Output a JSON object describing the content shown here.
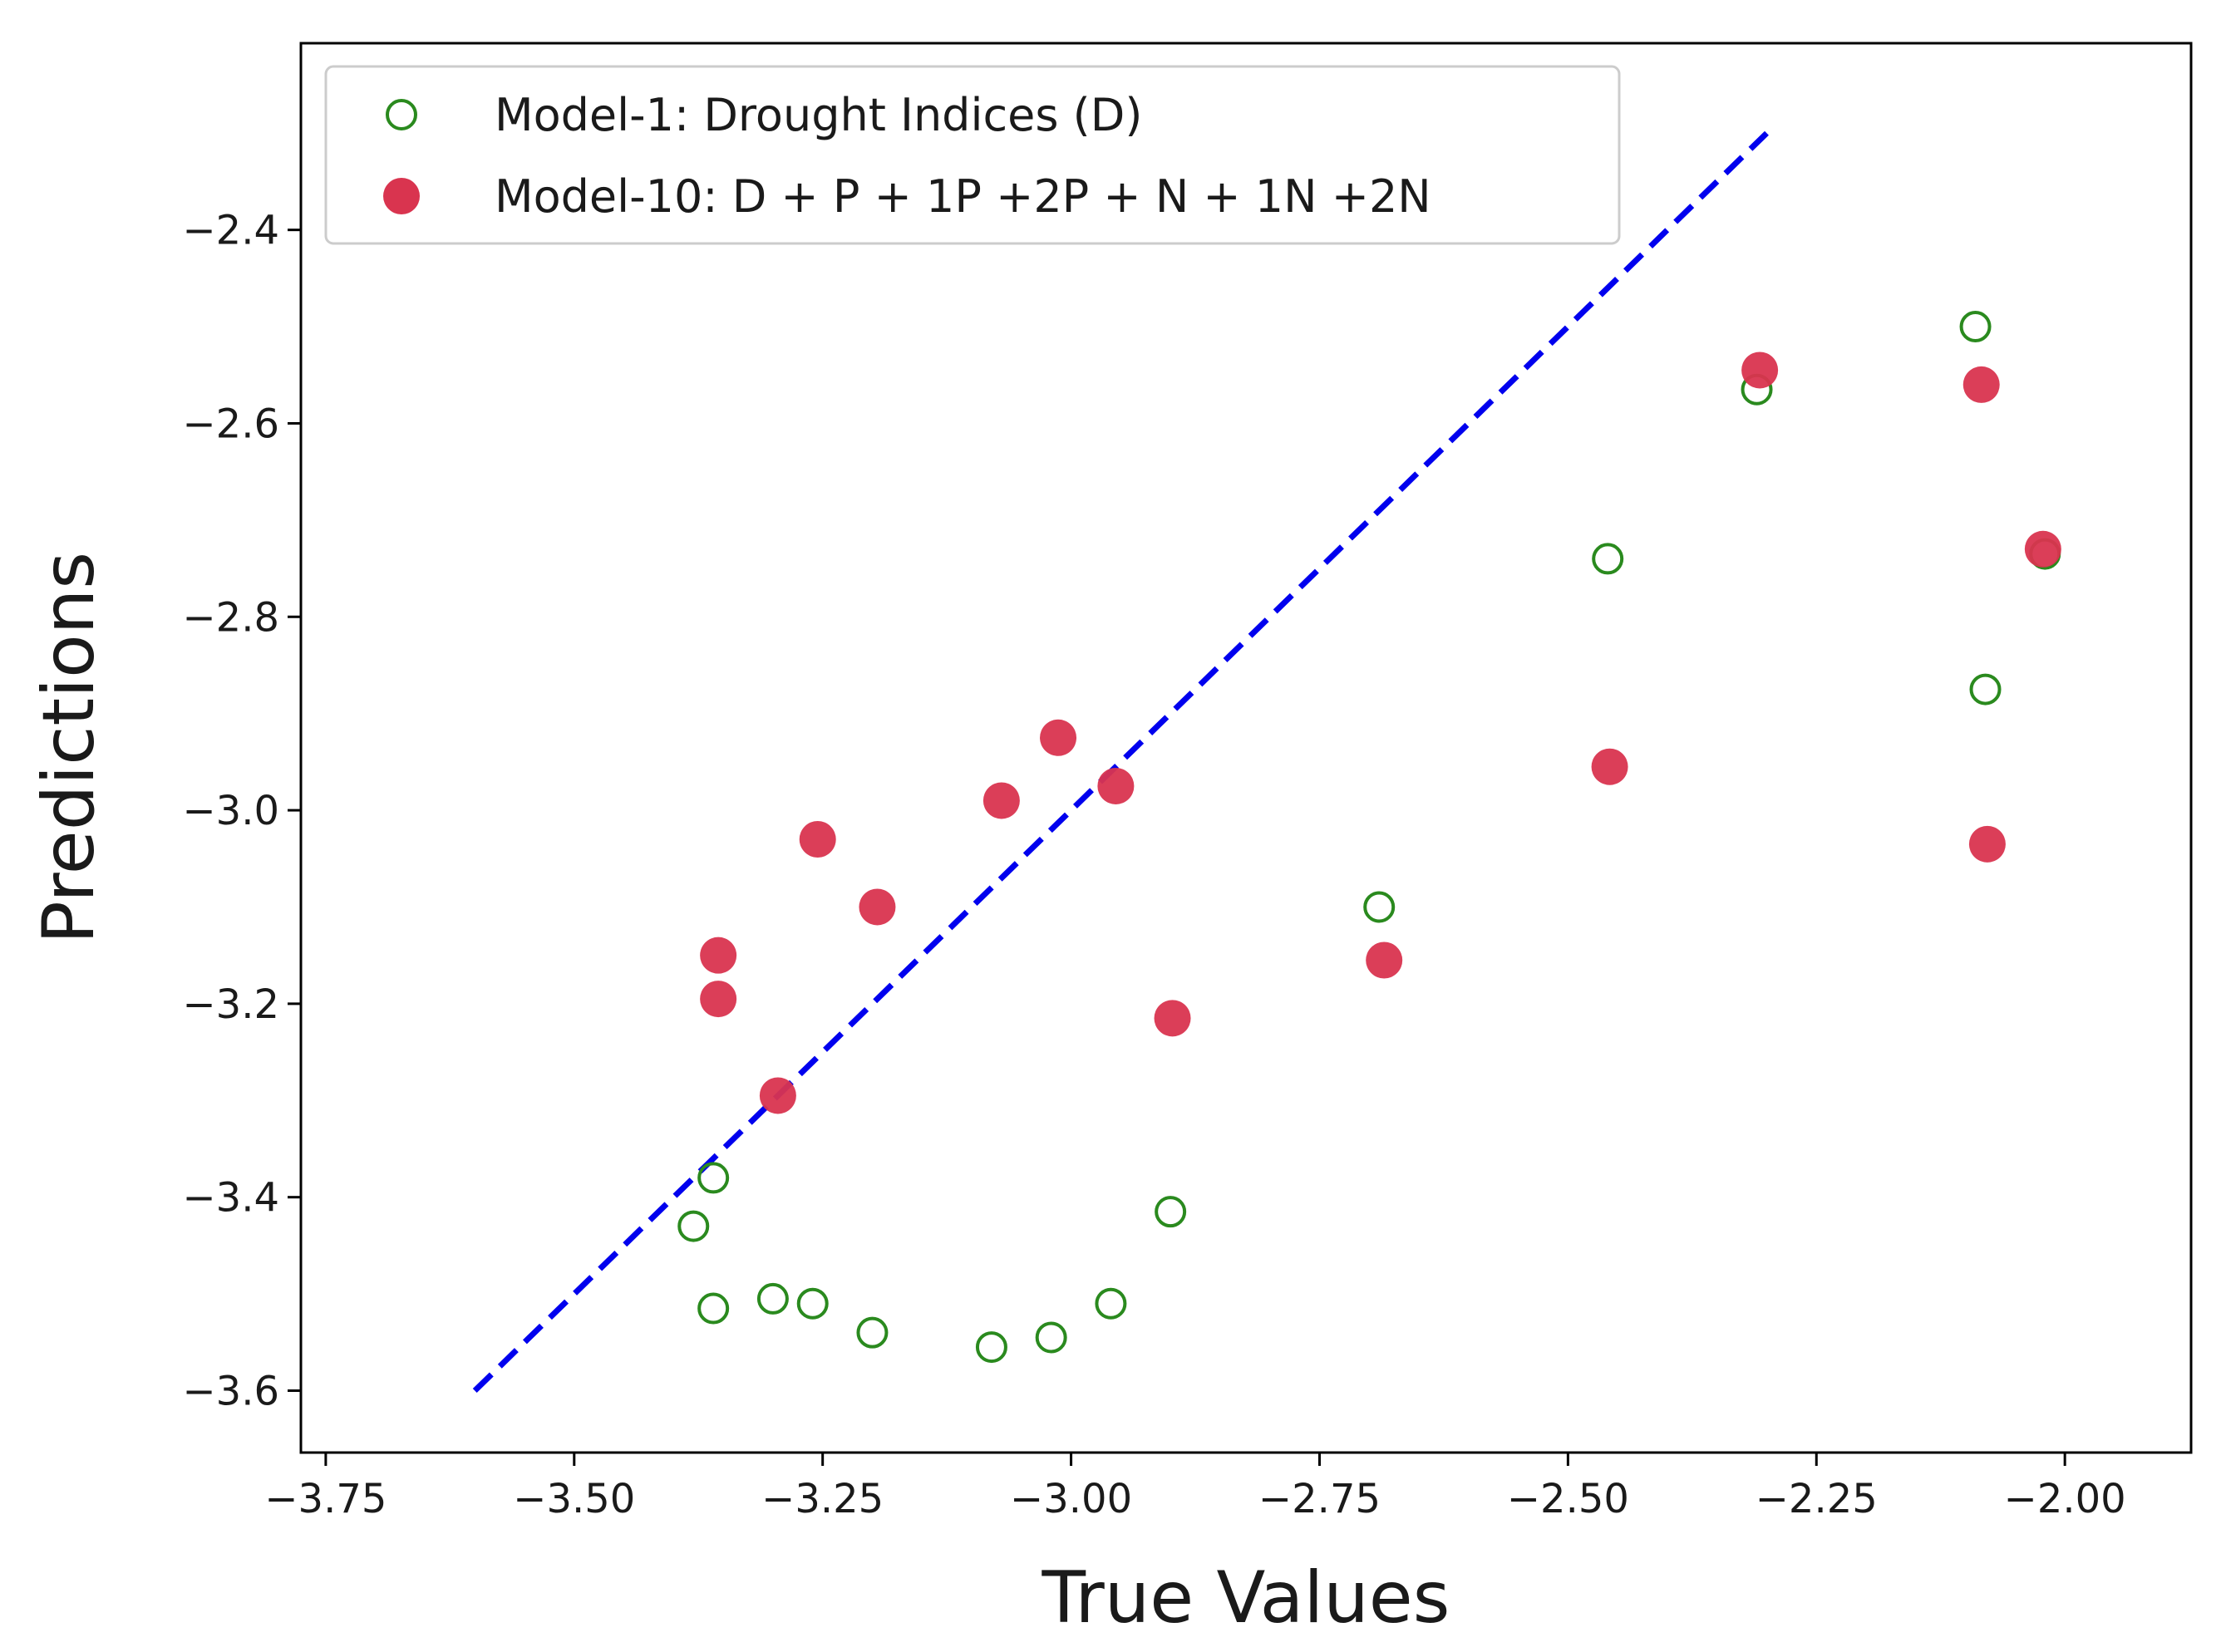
{
  "chart_data": {
    "type": "scatter",
    "title": "",
    "xlabel": "True Values",
    "ylabel": "Predictions",
    "xlim": [
      -3.775,
      -1.873
    ],
    "ylim": [
      -3.664,
      -2.207
    ],
    "xticks": [
      -3.75,
      -3.5,
      -3.25,
      -3.0,
      -2.75,
      -2.5,
      -2.25,
      -2.0
    ],
    "xtick_labels": [
      "−3.75",
      "−3.50",
      "−3.25",
      "−3.00",
      "−2.75",
      "−2.50",
      "−2.25",
      "−2.00"
    ],
    "yticks": [
      -3.6,
      -3.4,
      -3.2,
      -3.0,
      -2.8,
      -2.6,
      -2.4
    ],
    "ytick_labels": [
      "−3.6",
      "−3.4",
      "−3.2",
      "−3.0",
      "−2.8",
      "−2.6",
      "−2.4"
    ],
    "grid": false,
    "legend_position": "top-left",
    "reference_line": {
      "x": [
        -3.6,
        -2.3
      ],
      "y": [
        -3.6,
        -2.3
      ],
      "color": "#0000ee",
      "style": "dashed"
    },
    "series": [
      {
        "name": "Model-1: Drought Indices (D)",
        "marker": "open-circle",
        "color": "#2a8a1e",
        "x": [
          -3.38,
          -3.36,
          -3.36,
          -3.3,
          -3.26,
          -3.2,
          -3.08,
          -3.02,
          -2.96,
          -2.9,
          -2.69,
          -2.46,
          -2.31,
          -2.09,
          -2.08,
          -2.02
        ],
        "y": [
          -3.43,
          -3.38,
          -3.515,
          -3.505,
          -3.51,
          -3.54,
          -3.555,
          -3.545,
          -3.51,
          -3.415,
          -3.1,
          -2.74,
          -2.565,
          -2.5,
          -2.875,
          -2.735
        ]
      },
      {
        "name": "Model-10: D + P + 1P +2P + N + 1N +2N",
        "marker": "filled-circle",
        "color": "#d9344f",
        "x": [
          -3.355,
          -3.355,
          -3.295,
          -3.255,
          -3.195,
          -3.07,
          -3.013,
          -2.955,
          -2.898,
          -2.685,
          -2.458,
          -2.307,
          -2.084,
          -2.078,
          -2.022
        ],
        "y": [
          -3.15,
          -3.195,
          -3.295,
          -3.03,
          -3.1,
          -2.99,
          -2.925,
          -2.975,
          -3.215,
          -3.155,
          -2.955,
          -2.545,
          -2.56,
          -3.035,
          -2.73
        ]
      }
    ]
  }
}
